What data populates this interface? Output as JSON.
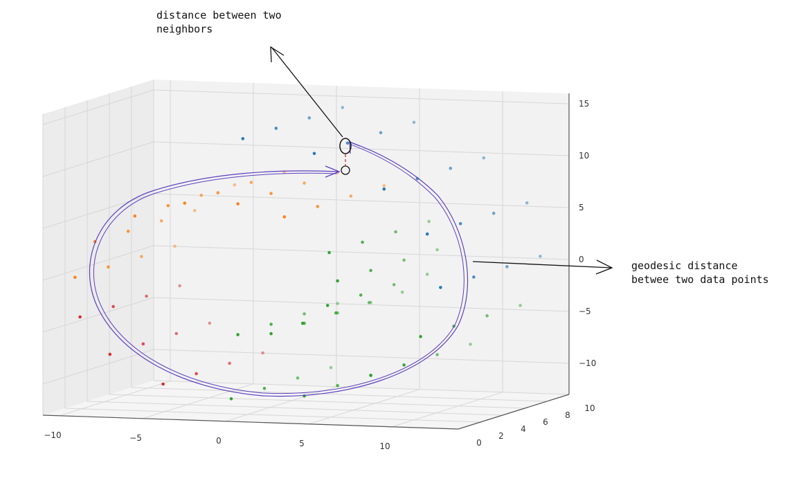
{
  "chart_data": {
    "type": "scatter",
    "projection": "3d",
    "title": "",
    "xlabel": "",
    "ylabel": "",
    "zlabel": "",
    "xlim": [
      -11,
      14
    ],
    "ylim": [
      0,
      10
    ],
    "zlim": [
      -13,
      16
    ],
    "xticks": [
      "-10",
      "-5",
      "0",
      "5",
      "10"
    ],
    "yticks": [
      "0",
      "2",
      "4",
      "6",
      "8",
      "10"
    ],
    "zticks": [
      "-10",
      "-5",
      "0",
      "5",
      "10",
      "15"
    ],
    "grid": true,
    "depthshade": true,
    "series": [
      {
        "color": "#2ca02c",
        "points": [
          [
            0.4,
            0.5,
            -4.8
          ],
          [
            0.4,
            3.5,
            -4.8
          ],
          [
            0.4,
            6.5,
            -4.8
          ],
          [
            0.4,
            9.5,
            -4.8
          ],
          [
            2.4,
            0.5,
            -4.6
          ],
          [
            2.4,
            3.5,
            -4.6
          ],
          [
            2.4,
            6.5,
            -4.6
          ],
          [
            2.4,
            9.5,
            -4.6
          ],
          [
            4.3,
            0.5,
            -3.5
          ],
          [
            4.3,
            3.5,
            -3.5
          ],
          [
            4.3,
            6.5,
            -3.5
          ],
          [
            4.3,
            9.5,
            -3.5
          ],
          [
            5.8,
            0.5,
            -1.7
          ],
          [
            5.8,
            3.5,
            -1.7
          ],
          [
            5.8,
            6.5,
            -1.7
          ],
          [
            5.8,
            9.5,
            -1.7
          ],
          [
            6.4,
            0.5,
            0.7
          ],
          [
            6.4,
            3.5,
            0.7
          ],
          [
            6.4,
            6.5,
            0.7
          ],
          [
            6.4,
            9.5,
            0.7
          ],
          [
            5.9,
            0.5,
            3.4
          ],
          [
            5.9,
            3.5,
            3.4
          ],
          [
            5.9,
            6.5,
            3.4
          ],
          [
            5.9,
            9.5,
            3.4
          ],
          [
            0.0,
            0.5,
            -11.0
          ],
          [
            0.0,
            3.5,
            -11.0
          ],
          [
            0.0,
            6.5,
            -11.0
          ],
          [
            0.0,
            9.5,
            -11.0
          ],
          [
            4.4,
            0.5,
            -10.5
          ],
          [
            4.4,
            3.5,
            -10.5
          ],
          [
            4.4,
            6.5,
            -10.5
          ],
          [
            4.4,
            9.5,
            -10.5
          ],
          [
            8.4,
            0.5,
            -8.3
          ],
          [
            8.4,
            3.5,
            -8.3
          ],
          [
            8.4,
            6.5,
            -8.3
          ],
          [
            8.4,
            9.5,
            -8.3
          ],
          [
            11.4,
            0.5,
            -4.4
          ],
          [
            11.4,
            3.5,
            -4.4
          ],
          [
            11.4,
            6.5,
            -4.4
          ],
          [
            11.4,
            9.5,
            -4.4
          ]
        ]
      },
      {
        "color": "#ff7f0e",
        "points": [
          [
            3.2,
            0.5,
            6.7
          ],
          [
            3.2,
            3.5,
            6.7
          ],
          [
            3.2,
            6.5,
            6.7
          ],
          [
            3.2,
            9.5,
            6.7
          ],
          [
            0.4,
            0.5,
            7.8
          ],
          [
            0.4,
            3.5,
            7.8
          ],
          [
            0.4,
            6.5,
            7.8
          ],
          [
            0.4,
            9.5,
            7.8
          ],
          [
            -2.8,
            0.5,
            7.7
          ],
          [
            -2.8,
            3.5,
            7.7
          ],
          [
            -2.8,
            6.5,
            7.7
          ],
          [
            -2.8,
            9.5,
            7.7
          ],
          [
            -5.8,
            0.5,
            6.3
          ],
          [
            -5.8,
            3.5,
            6.3
          ],
          [
            -5.8,
            6.5,
            6.3
          ],
          [
            -5.8,
            9.5,
            6.3
          ],
          [
            -8.2,
            0.5,
            3.7
          ],
          [
            -8.2,
            3.5,
            3.7
          ],
          [
            -8.2,
            6.5,
            3.7
          ],
          [
            -8.2,
            9.5,
            3.7
          ],
          [
            -9.4,
            0.5,
            0.2
          ],
          [
            -9.4,
            3.5,
            0.2
          ],
          [
            -9.4,
            6.5,
            0.2
          ],
          [
            -9.4,
            9.5,
            0.2
          ]
        ]
      },
      {
        "color": "#d62728",
        "points": [
          [
            -9.1,
            0.5,
            -3.6
          ],
          [
            -9.1,
            3.5,
            -3.6
          ],
          [
            -9.1,
            6.5,
            -3.6
          ],
          [
            -9.1,
            9.5,
            -3.6
          ],
          [
            -7.3,
            0.5,
            -7.1
          ],
          [
            -7.3,
            3.5,
            -7.1
          ],
          [
            -7.3,
            6.5,
            -7.1
          ],
          [
            -7.3,
            9.5,
            -7.1
          ],
          [
            -4.1,
            0.5,
            -9.8
          ],
          [
            -4.1,
            3.5,
            -9.8
          ],
          [
            -4.1,
            6.5,
            -9.8
          ],
          [
            -4.1,
            9.5,
            -9.8
          ]
        ]
      },
      {
        "color": "#1f77b4",
        "points": [
          [
            12.6,
            0.5,
            0.4
          ],
          [
            12.6,
            3.5,
            0.4
          ],
          [
            12.6,
            6.5,
            0.4
          ],
          [
            12.6,
            9.5,
            0.4
          ],
          [
            11.8,
            0.5,
            5.5
          ],
          [
            11.8,
            3.5,
            5.5
          ],
          [
            11.8,
            6.5,
            5.5
          ],
          [
            11.8,
            9.5,
            5.5
          ],
          [
            9.2,
            0.5,
            9.7
          ],
          [
            9.2,
            3.5,
            9.7
          ],
          [
            9.2,
            6.5,
            9.7
          ],
          [
            9.2,
            9.5,
            9.7
          ],
          [
            5.0,
            0.5,
            12.9
          ],
          [
            5.0,
            3.5,
            12.9
          ],
          [
            5.0,
            6.5,
            12.9
          ],
          [
            5.0,
            9.5,
            12.9
          ],
          [
            0.7,
            0.5,
            14.1
          ],
          [
            0.7,
            3.5,
            14.1
          ],
          [
            0.7,
            6.5,
            14.1
          ],
          [
            0.7,
            9.5,
            14.1
          ]
        ]
      }
    ]
  },
  "annotations": {
    "neighbors_line1": "distance between two",
    "neighbors_line2": "neighbors",
    "geodesic_line1": "geodesic distance",
    "geodesic_line2": "betwee two data points",
    "geodesic_color": "#5b3fbf",
    "neighbor_link_color": "#d62728"
  }
}
